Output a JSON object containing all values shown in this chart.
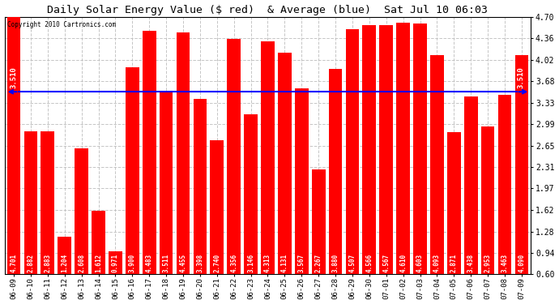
{
  "title": "Daily Solar Energy Value ($ red)  & Average (blue)  Sat Jul 10 06:03",
  "copyright": "Copyright 2010 Cartronics.com",
  "average": 3.51,
  "bar_color": "#ff0000",
  "average_color": "#0000ff",
  "background_color": "#ffffff",
  "ylim": [
    0.6,
    4.7
  ],
  "yticks": [
    0.6,
    0.94,
    1.28,
    1.62,
    1.97,
    2.31,
    2.65,
    2.99,
    3.33,
    3.68,
    4.02,
    4.36,
    4.7
  ],
  "categories": [
    "06-09",
    "06-10",
    "06-11",
    "06-12",
    "06-13",
    "06-14",
    "06-15",
    "06-16",
    "06-17",
    "06-18",
    "06-19",
    "06-20",
    "06-21",
    "06-22",
    "06-23",
    "06-24",
    "06-25",
    "06-26",
    "06-27",
    "06-28",
    "06-29",
    "06-30",
    "07-01",
    "07-02",
    "07-03",
    "07-04",
    "07-05",
    "07-06",
    "07-07",
    "07-08",
    "07-09"
  ],
  "values": [
    4.701,
    2.882,
    2.883,
    1.204,
    2.608,
    1.612,
    0.971,
    3.9,
    4.483,
    3.511,
    4.455,
    3.398,
    2.74,
    4.356,
    3.146,
    4.313,
    4.131,
    3.567,
    2.267,
    3.88,
    4.507,
    4.566,
    4.567,
    4.61,
    4.603,
    4.093,
    2.871,
    3.438,
    2.953,
    3.463,
    4.09
  ],
  "bar_width": 0.8,
  "title_fontsize": 9.5,
  "tick_fontsize": 6.5,
  "label_fontsize": 5.5,
  "avg_label_fontsize": 6.5,
  "copyright_fontsize": 5.5
}
